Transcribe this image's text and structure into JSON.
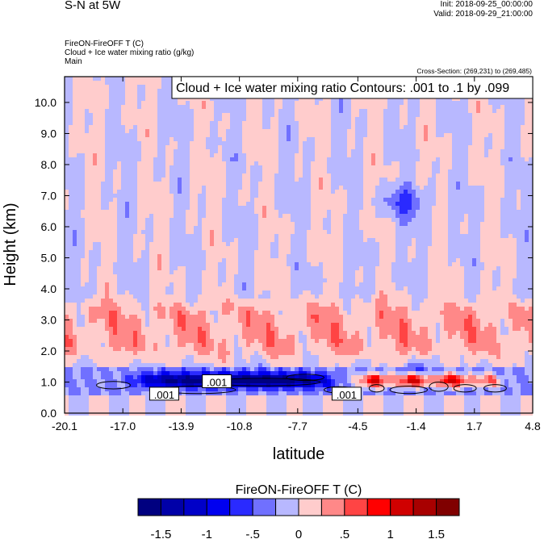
{
  "header": {
    "title": "S-N at 5W",
    "init": "Init: 2018-09-25_00:00:00",
    "valid": "Valid: 2018-09-29_21:00:00",
    "subtitle_lines": [
      "FireON-FireOFF T   (C)",
      "Cloud + Ice water mixing ratio   (g/kg)",
      "Main"
    ],
    "cross_section": "Cross-Section: (269,231) to (269,485)"
  },
  "chart_data": {
    "type": "heatmap",
    "title": "Cloud + Ice water mixing ratio Contours: .001 to .1 by .099",
    "xlabel": "latitude",
    "ylabel": "Height (km)",
    "xlim": [
      -20.1,
      4.8
    ],
    "ylim": [
      0,
      10.83
    ],
    "xticks": [
      "-20.1",
      "-17.0",
      "-13.9",
      "-10.8",
      "-7.7",
      "-4.5",
      "-1.4",
      "1.7",
      "4.8"
    ],
    "xtick_values": [
      -20.1,
      -17.0,
      -13.9,
      -10.8,
      -7.7,
      -4.5,
      -1.4,
      1.7,
      4.8
    ],
    "yticks": [
      "0.0",
      "1.0",
      "2.0",
      "3.0",
      "4.0",
      "5.0",
      "6.0",
      "7.0",
      "8.0",
      "9.0",
      "10.0"
    ],
    "ytick_values": [
      0,
      1,
      2,
      3,
      4,
      5,
      6,
      7,
      8,
      9,
      10
    ],
    "contour_labels": [
      {
        "text": ".001",
        "lat": -14.8,
        "h": 0.6
      },
      {
        "text": ".001",
        "lat": -12.0,
        "h": 1.0
      },
      {
        "text": ".001",
        "lat": -5.1,
        "h": 0.6
      }
    ],
    "field_regions": [
      {
        "desc": "upper stripes",
        "h": [
          4.0,
          10.83
        ],
        "value_range": [
          -0.25,
          0.25
        ]
      },
      {
        "desc": "warm band",
        "h": [
          1.6,
          3.9
        ],
        "value_range": [
          0.1,
          0.6
        ]
      },
      {
        "desc": "cold layer",
        "lat": [
          -16,
          -6
        ],
        "h": [
          0.8,
          1.3
        ],
        "value_range": [
          -1.6,
          -1.0
        ]
      },
      {
        "desc": "hot layer",
        "lat": [
          -5,
          3
        ],
        "h": [
          0.8,
          1.3
        ],
        "value_range": [
          0.6,
          1.3
        ]
      },
      {
        "desc": "cold blob",
        "lat": [
          -3.5,
          -0.5
        ],
        "h": [
          6.3,
          7.3
        ],
        "value_range": [
          -0.7,
          -0.3
        ]
      }
    ],
    "colorbar": {
      "title": "FireON-FireOFF T  (C)",
      "levels": [
        -1.5,
        -1.25,
        -1,
        -0.75,
        -0.5,
        -0.25,
        0,
        0.25,
        0.5,
        0.75,
        1,
        1.25,
        1.5
      ],
      "labels": [
        "-1.5",
        "-1",
        "-.5",
        "0",
        ".5",
        "1",
        "1.5"
      ],
      "label_values": [
        -1.5,
        -1,
        -0.5,
        0,
        0.5,
        1,
        1.5
      ],
      "colors": [
        "#000080",
        "#0000a8",
        "#0000c8",
        "#0000f0",
        "#2a2aff",
        "#7070ff",
        "#b8b8ff",
        "#ffcccc",
        "#ff8888",
        "#ff4444",
        "#ff0000",
        "#d00000",
        "#a80000",
        "#800000"
      ]
    }
  }
}
